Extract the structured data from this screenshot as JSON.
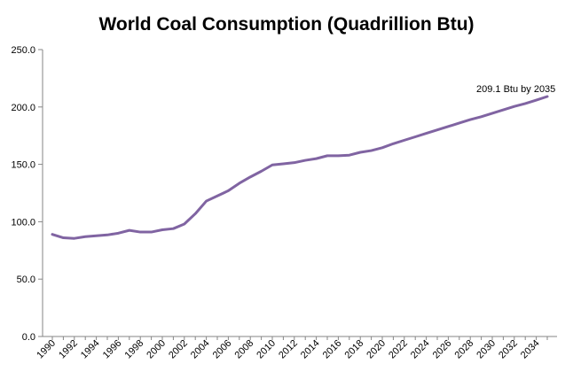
{
  "chart_data": {
    "type": "line",
    "title": "World Coal Consumption (Quadrillion Btu)",
    "xlabel": "",
    "ylabel": "",
    "ylim": [
      0,
      250
    ],
    "y_ticks": [
      "0.0",
      "50.0",
      "100.0",
      "150.0",
      "200.0",
      "250.0"
    ],
    "x_ticks": [
      "1990",
      "1992",
      "1994",
      "1996",
      "1998",
      "2000",
      "2002",
      "2004",
      "2006",
      "2008",
      "2010",
      "2012",
      "2014",
      "2016",
      "2018",
      "2020",
      "2022",
      "2024",
      "2026",
      "2028",
      "2030",
      "2032",
      "2034"
    ],
    "grid": false,
    "legend": "none",
    "annotation": "209.1 Btu by 2035",
    "line_color": "#8064A2",
    "x": [
      1990,
      1991,
      1992,
      1993,
      1994,
      1995,
      1996,
      1997,
      1998,
      1999,
      2000,
      2001,
      2002,
      2003,
      2004,
      2005,
      2006,
      2007,
      2008,
      2009,
      2010,
      2011,
      2012,
      2013,
      2014,
      2015,
      2016,
      2017,
      2018,
      2019,
      2020,
      2021,
      2022,
      2023,
      2024,
      2025,
      2026,
      2027,
      2028,
      2029,
      2030,
      2031,
      2032,
      2033,
      2034,
      2035
    ],
    "series": [
      {
        "values": [
          89.0,
          86.0,
          85.5,
          87.0,
          87.8,
          88.5,
          90.0,
          92.5,
          91.0,
          91.0,
          93.0,
          94.0,
          98.0,
          107.0,
          118.0,
          122.5,
          127.0,
          133.5,
          139.0,
          144.0,
          149.5,
          150.5,
          151.5,
          153.5,
          155.0,
          157.5,
          157.5,
          158.0,
          160.5,
          162.0,
          164.5,
          168.0,
          171.0,
          174.0,
          177.0,
          180.0,
          183.0,
          186.0,
          189.0,
          191.5,
          194.5,
          197.5,
          200.5,
          203.0,
          206.0,
          209.1
        ]
      }
    ]
  }
}
